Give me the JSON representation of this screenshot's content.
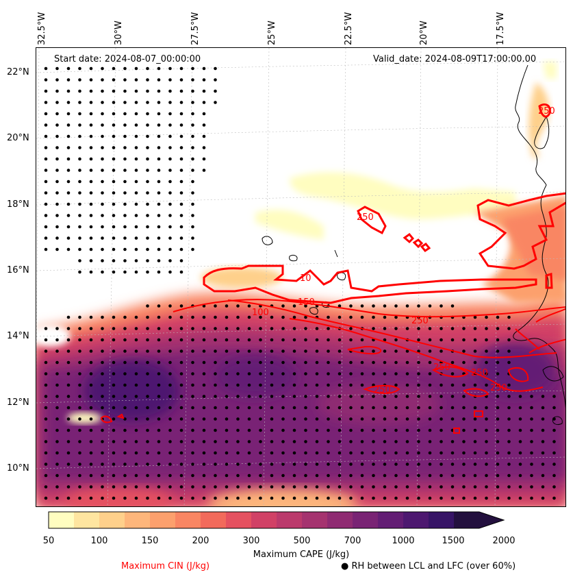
{
  "map": {
    "start_date": "Start date: 2024-08-07_00:00:00",
    "valid_date": "Valid_date: 2024-08-09T17:00:00.00",
    "lon_labels": [
      "32.5°W",
      "30°W",
      "27.5°W",
      "25°W",
      "22.5°W",
      "20°W",
      "17.5°W"
    ],
    "lat_labels": [
      "22°N",
      "20°N",
      "18°N",
      "16°N",
      "14°N",
      "12°N",
      "10°N"
    ],
    "cin_contour_labels": [
      "100",
      "250",
      "250",
      "250",
      "250",
      "150",
      "250",
      "10",
      "250",
      "250"
    ]
  },
  "colorbar": {
    "title": "Maximum CAPE (J/kg)",
    "ticks": [
      "50",
      "100",
      "150",
      "200",
      "300",
      "500",
      "700",
      "1000",
      "1500",
      "2000"
    ],
    "colors": [
      "#fffdc0",
      "#fee5a0",
      "#fed08b",
      "#fdb67b",
      "#fca06d",
      "#f98663",
      "#f26a5b",
      "#e55160",
      "#d14166",
      "#bb3a6c",
      "#a5336f",
      "#8f2b72",
      "#792374",
      "#631d74",
      "#4d1870",
      "#371466",
      "#23103e"
    ]
  },
  "legend": {
    "cin_label": "Maximum CIN (J/kg)",
    "rh_label": "● RH between LCL and LFC (over 60%)"
  },
  "colors": {
    "cin_contour": "#ff0000",
    "coastline": "#000000",
    "dots": "#000000"
  }
}
